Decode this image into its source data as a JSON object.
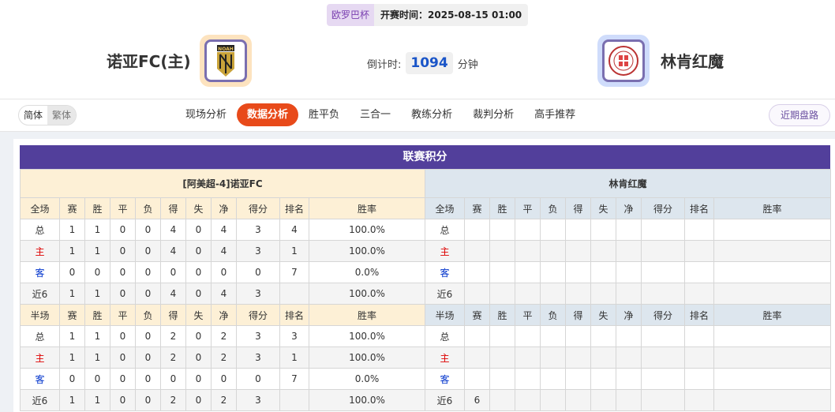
{
  "header": {
    "cup": "欧罗巴杯",
    "start_time": "开赛时间：2025-08-15 01:00",
    "home": "诺亚FC(主)",
    "away": "林肯红魔",
    "countdown_label": "倒计时:",
    "countdown_value": "1094",
    "countdown_unit": "分钟",
    "home_logo_text": "NOAH"
  },
  "nav": {
    "lang": [
      "简体",
      "繁体"
    ],
    "tabs": [
      "现场分析",
      "数据分析",
      "胜平负",
      "三合一",
      "教练分析",
      "裁判分析",
      "高手推荐"
    ],
    "active": "数据分析",
    "recent": "近期盘路"
  },
  "standings": {
    "title": "联赛积分",
    "columns_full": [
      "全场",
      "赛",
      "胜",
      "平",
      "负",
      "得",
      "失",
      "净",
      "得分",
      "排名",
      "胜率"
    ],
    "columns_half": [
      "半场",
      "赛",
      "胜",
      "平",
      "负",
      "得",
      "失",
      "净",
      "得分",
      "排名",
      "胜率"
    ],
    "home": {
      "name": "[阿美超-4]诺亚FC",
      "full": [
        [
          "总",
          "1",
          "1",
          "0",
          "0",
          "4",
          "0",
          "4",
          "3",
          "4",
          "100.0%"
        ],
        [
          "主",
          "1",
          "1",
          "0",
          "0",
          "4",
          "0",
          "4",
          "3",
          "1",
          "100.0%"
        ],
        [
          "客",
          "0",
          "0",
          "0",
          "0",
          "0",
          "0",
          "0",
          "0",
          "7",
          "0.0%"
        ],
        [
          "近6",
          "1",
          "1",
          "0",
          "0",
          "4",
          "0",
          "4",
          "3",
          "",
          "100.0%"
        ]
      ],
      "half": [
        [
          "总",
          "1",
          "1",
          "0",
          "0",
          "2",
          "0",
          "2",
          "3",
          "3",
          "100.0%"
        ],
        [
          "主",
          "1",
          "1",
          "0",
          "0",
          "2",
          "0",
          "2",
          "3",
          "1",
          "100.0%"
        ],
        [
          "客",
          "0",
          "0",
          "0",
          "0",
          "0",
          "0",
          "0",
          "0",
          "7",
          "0.0%"
        ],
        [
          "近6",
          "1",
          "1",
          "0",
          "0",
          "2",
          "0",
          "2",
          "3",
          "",
          "100.0%"
        ]
      ]
    },
    "away": {
      "name": "林肯红魔",
      "full": [
        [
          "总",
          "",
          "",
          "",
          "",
          "",
          "",
          "",
          "",
          "",
          ""
        ],
        [
          "主",
          "",
          "",
          "",
          "",
          "",
          "",
          "",
          "",
          "",
          ""
        ],
        [
          "客",
          "",
          "",
          "",
          "",
          "",
          "",
          "",
          "",
          "",
          ""
        ],
        [
          "近6",
          "",
          "",
          "",
          "",
          "",
          "",
          "",
          "",
          "",
          ""
        ]
      ],
      "half": [
        [
          "总",
          "",
          "",
          "",
          "",
          "",
          "",
          "",
          "",
          "",
          ""
        ],
        [
          "主",
          "",
          "",
          "",
          "",
          "",
          "",
          "",
          "",
          "",
          ""
        ],
        [
          "客",
          "",
          "",
          "",
          "",
          "",
          "",
          "",
          "",
          "",
          ""
        ],
        [
          "近6",
          "6",
          "",
          "",
          "",
          "",
          "",
          "",
          "",
          "",
          ""
        ]
      ]
    }
  }
}
